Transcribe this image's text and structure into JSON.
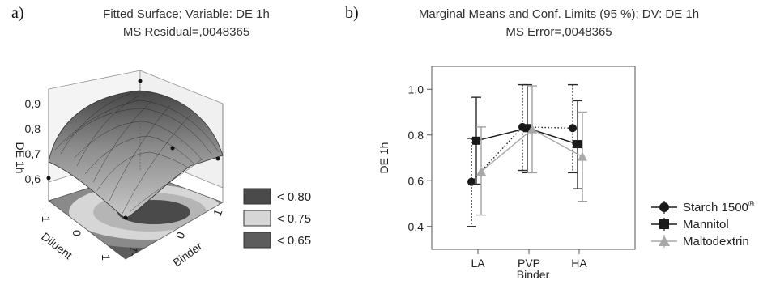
{
  "panel_a": {
    "letter": "a)",
    "title": "Fitted Surface; Variable: DE 1h",
    "subtitle": "MS Residual=,0048365",
    "zlabel": "DE  1h",
    "xlabel": "Diluent",
    "ylabel": "Binder",
    "z_ticks": [
      "0,9",
      "0,8",
      "0,7",
      "0,6"
    ],
    "diluent_ticks": [
      "-1",
      "0",
      "1"
    ],
    "binder_ticks": [
      "-1",
      "0",
      "1"
    ],
    "legend": [
      {
        "label": "< 0,80",
        "color": "#4a4a4a"
      },
      {
        "label": "< 0,75",
        "color": "#d6d6d6"
      },
      {
        "label": "< 0,65",
        "color": "#5c5c5c"
      }
    ]
  },
  "panel_b": {
    "letter": "b)",
    "title": "Marginal Means and Conf. Limits (95 %); DV: DE 1h",
    "subtitle": "MS Error=,0048365",
    "ylabel": "DE 1h",
    "xlabel": "Binder",
    "legend": [
      {
        "label": "Starch 1500",
        "sup": "®",
        "marker": "circle"
      },
      {
        "label": "Mannitol",
        "marker": "square"
      },
      {
        "label": "Maltodextrin",
        "marker": "triangle"
      }
    ]
  },
  "chart_data": [
    {
      "type": "surface",
      "title": "Fitted Surface; Variable: DE 1h",
      "subtitle": "MS Residual=,0048365",
      "xlabel": "Diluent",
      "ylabel": "Binder",
      "zlabel": "DE  1h",
      "xlim": [
        -1,
        1
      ],
      "ylim": [
        -1,
        1
      ],
      "zlim": [
        0.55,
        0.92
      ],
      "z_ticks": [
        0.6,
        0.7,
        0.8,
        0.9
      ],
      "model": "quadratic response surface (peak ~0,85 at Diluent ~0, Binder ~0)",
      "observed_points": [
        {
          "diluent": -1,
          "binder": -1,
          "de": 0.6
        },
        {
          "diluent": 0,
          "binder": 1,
          "de": 0.9
        },
        {
          "diluent": 1,
          "binder": 0,
          "de": 0.73
        },
        {
          "diluent": 1,
          "binder": 1,
          "de": 0.7
        },
        {
          "diluent": 0,
          "binder": -1,
          "de": 0.84
        }
      ],
      "contour_legend": [
        "< 0,80",
        "< 0,75",
        "< 0,65"
      ]
    },
    {
      "type": "line",
      "title": "Marginal Means and Conf. Limits (95 %); DV: DE 1h",
      "subtitle": "MS Error=,0048365",
      "xlabel": "Binder",
      "ylabel": "DE 1h",
      "categories": [
        "LA",
        "PVP",
        "HA"
      ],
      "ylim": [
        0.3,
        1.1
      ],
      "y_ticks": [
        "0,4",
        "0,6",
        "0,8",
        "1,0"
      ],
      "grid": false,
      "legend_position": "bottom-right",
      "series": [
        {
          "name": "Starch 1500®",
          "color": "#1a1a1a",
          "dash": "dotted",
          "marker": "circle",
          "values": [
            0.595,
            0.835,
            0.83
          ],
          "lower": [
            0.4,
            0.645,
            0.635
          ],
          "upper": [
            0.785,
            1.02,
            1.02
          ]
        },
        {
          "name": "Mannitol",
          "color": "#1a1a1a",
          "dash": "solid",
          "marker": "square",
          "values": [
            0.775,
            0.83,
            0.76
          ],
          "lower": [
            0.585,
            0.635,
            0.565
          ],
          "upper": [
            0.965,
            1.02,
            0.95
          ]
        },
        {
          "name": "Maltodextrin",
          "color": "#a8a8a8",
          "dash": "solid",
          "marker": "triangle",
          "values": [
            0.64,
            0.825,
            0.705
          ],
          "lower": [
            0.45,
            0.635,
            0.51
          ],
          "upper": [
            0.835,
            1.015,
            0.9
          ]
        }
      ]
    }
  ]
}
